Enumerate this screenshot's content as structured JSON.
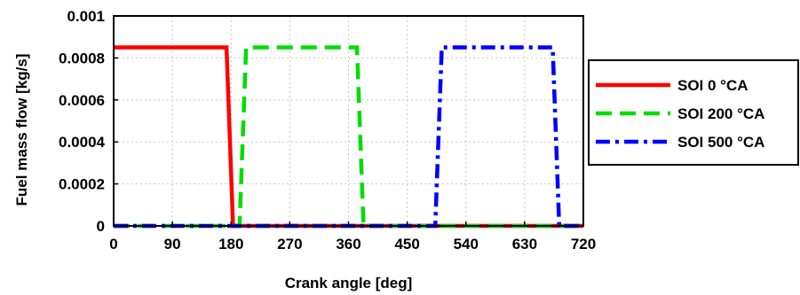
{
  "chart_data": {
    "type": "line",
    "title": "",
    "xlabel": "Crank angle [deg]",
    "ylabel": "Fuel mass flow [kg/s]",
    "xlim": [
      0,
      720
    ],
    "ylim": [
      0,
      0.001
    ],
    "xticks": [
      0,
      90,
      180,
      270,
      360,
      450,
      540,
      630,
      720
    ],
    "yticks": [
      0,
      0.0002,
      0.0004,
      0.0006,
      0.0008,
      0.001
    ],
    "xtick_labels": [
      "0",
      "90",
      "180",
      "270",
      "360",
      "450",
      "540",
      "630",
      "720"
    ],
    "ytick_labels": [
      "0",
      "0.0002",
      "0.0004",
      "0.0006",
      "0.0008",
      "0.001"
    ],
    "grid": true,
    "legend_position": "right, outside plot",
    "series": [
      {
        "name": "SOI 0 °CA",
        "color": "#ff0000",
        "line_style": "solid",
        "x": [
          0,
          173,
          183,
          720
        ],
        "y": [
          0.00085,
          0.00085,
          0,
          0
        ]
      },
      {
        "name": "SOI 200 °CA",
        "color": "#00dd00",
        "line_style": "dashed",
        "x": [
          0,
          193,
          203,
          373,
          383,
          720
        ],
        "y": [
          0,
          0,
          0.00085,
          0.00085,
          0,
          0
        ]
      },
      {
        "name": "SOI 500 °CA",
        "color": "#0000ff",
        "line_style": "dash-dot",
        "x": [
          0,
          493,
          503,
          673,
          683,
          720
        ],
        "y": [
          0,
          0,
          0.00085,
          0.00085,
          0,
          0
        ]
      }
    ]
  }
}
